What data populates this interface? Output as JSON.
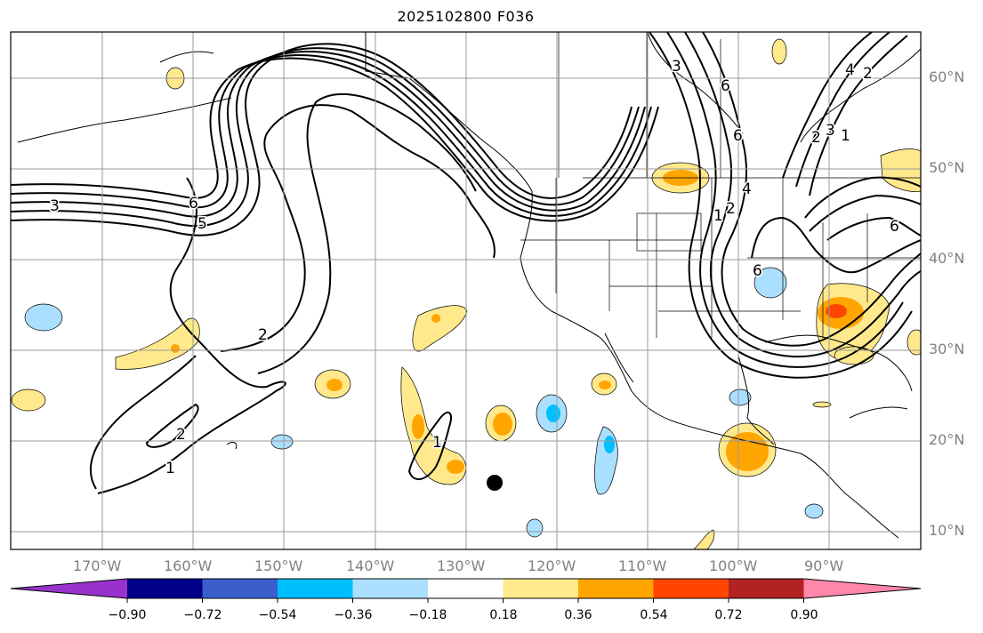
{
  "title": "2025102800 F036",
  "lat_labels": [
    "60°N",
    "50°N",
    "40°N",
    "30°N",
    "20°N",
    "10°N"
  ],
  "lon_labels": [
    "170°W",
    "160°W",
    "150°W",
    "140°W",
    "130°W",
    "120°W",
    "110°W",
    "100°W",
    "90°W"
  ],
  "colorbar": {
    "colors": [
      "#9932cc",
      "#00008b",
      "#3a5fcd",
      "#00bfff",
      "#aadfff",
      "#ffffff",
      "#ffe98c",
      "#ffa500",
      "#ff4500",
      "#b22222",
      "#ff88aa"
    ],
    "tick_labels": [
      "−0.90",
      "−0.72",
      "−0.54",
      "−0.36",
      "−0.18",
      "0.18",
      "0.36",
      "0.54",
      "0.72",
      "0.90"
    ]
  },
  "contour_labels": [
    "3",
    "6",
    "5",
    "2",
    "2",
    "1",
    "1",
    "6",
    "3",
    "6",
    "4",
    "1",
    "2",
    "6",
    "2",
    "3",
    "1",
    "4",
    "2",
    "6"
  ],
  "marker": {
    "lon": -127.5,
    "lat": 15.3,
    "symbol": "filled-circle"
  }
}
